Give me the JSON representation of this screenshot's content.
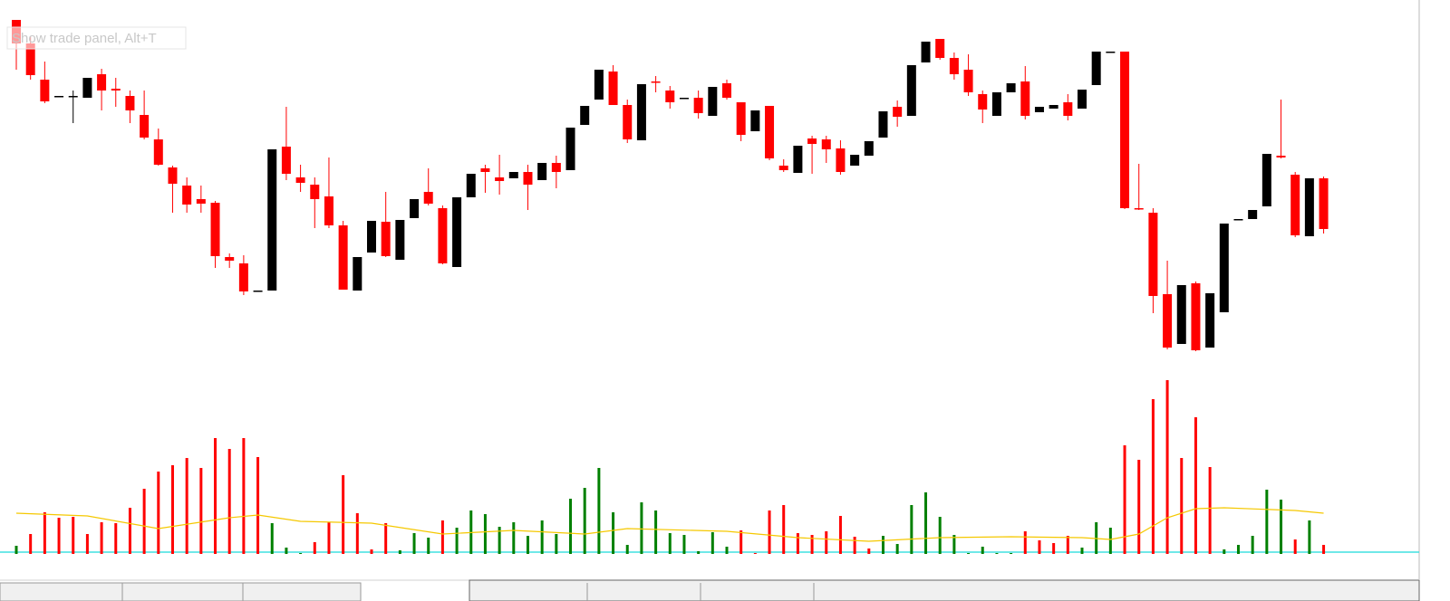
{
  "tooltip": "Show trade panel, Alt+T",
  "chart_data": {
    "type": "candlestick",
    "ylim": [
      0,
      400
    ],
    "up_color": "#000000",
    "down_color": "#ff0000",
    "open": [
      378,
      352,
      312,
      294,
      294,
      292,
      318,
      302,
      294,
      273,
      246,
      215,
      195,
      180,
      176,
      116,
      109,
      79,
      79,
      238,
      204,
      196,
      183,
      151,
      79,
      121,
      155,
      113,
      159,
      188,
      170,
      105,
      182,
      214,
      204,
      203,
      210,
      201,
      220,
      212,
      262,
      290,
      321,
      284,
      245,
      310,
      300,
      292,
      292,
      272,
      308,
      287,
      255,
      283,
      217,
      209,
      247,
      246,
      236,
      217,
      228,
      248,
      282,
      272,
      331,
      357,
      336,
      323,
      296,
      272,
      298,
      310,
      276,
      280,
      287,
      280,
      306,
      343,
      343,
      170,
      165,
      75,
      20,
      87,
      16,
      55,
      158,
      158,
      172,
      228,
      207,
      139,
      203
    ],
    "high": [
      378,
      360,
      332,
      294,
      300,
      314,
      324,
      314,
      300,
      300,
      258,
      217,
      204,
      195,
      178,
      120,
      118,
      79,
      235,
      282,
      218,
      204,
      226,
      156,
      116,
      156,
      188,
      157,
      180,
      214,
      173,
      182,
      208,
      218,
      229,
      210,
      218,
      220,
      228,
      259,
      283,
      323,
      328,
      290,
      307,
      316,
      305,
      292,
      300,
      304,
      312,
      287,
      278,
      283,
      224,
      239,
      250,
      250,
      245,
      229,
      244,
      277,
      289,
      328,
      354,
      357,
      342,
      340,
      300,
      298,
      308,
      327,
      282,
      284,
      296,
      301,
      343,
      343,
      343,
      219,
      170,
      112,
      85,
      89,
      76,
      153,
      158,
      168,
      230,
      290,
      210,
      203,
      205
    ],
    "low": [
      323,
      312,
      286,
      294,
      264,
      292,
      278,
      282,
      264,
      246,
      217,
      165,
      165,
      165,
      104,
      104,
      74,
      79,
      79,
      201,
      188,
      148,
      148,
      80,
      79,
      121,
      116,
      113,
      159,
      173,
      108,
      105,
      182,
      187,
      185,
      203,
      168,
      201,
      192,
      212,
      262,
      290,
      284,
      242,
      245,
      298,
      280,
      292,
      269,
      272,
      290,
      244,
      255,
      223,
      210,
      209,
      208,
      220,
      207,
      217,
      228,
      248,
      260,
      272,
      331,
      334,
      312,
      294,
      264,
      272,
      298,
      268,
      276,
      280,
      267,
      280,
      306,
      343,
      169,
      168,
      54,
      14,
      20,
      12,
      16,
      55,
      158,
      158,
      172,
      225,
      138,
      139,
      142
    ],
    "close": [
      352,
      317,
      288,
      294,
      294,
      314,
      300,
      300,
      278,
      248,
      218,
      197,
      174,
      175,
      117,
      112,
      78,
      79,
      235,
      208,
      198,
      180,
      151,
      80,
      116,
      156,
      117,
      157,
      180,
      175,
      109,
      182,
      208,
      210,
      200,
      210,
      196,
      220,
      210,
      259,
      283,
      323,
      284,
      246,
      307,
      309,
      287,
      292,
      275,
      304,
      292,
      251,
      278,
      225,
      212,
      239,
      241,
      235,
      210,
      229,
      244,
      277,
      271,
      328,
      354,
      336,
      318,
      298,
      279,
      298,
      308,
      272,
      282,
      284,
      272,
      301,
      343,
      343,
      170,
      169,
      73,
      16,
      85,
      13,
      76,
      153,
      158,
      168,
      230,
      226,
      140,
      203,
      147
    ],
    "volume_ylim": [
      0,
      200
    ],
    "volume": [
      9,
      22,
      46,
      40,
      41,
      22,
      35,
      34,
      51,
      72,
      91,
      98,
      106,
      95,
      128,
      116,
      128,
      107,
      34,
      7,
      1,
      13,
      35,
      87,
      45,
      5,
      34,
      4,
      23,
      18,
      37,
      29,
      48,
      44,
      30,
      35,
      20,
      37,
      22,
      61,
      73,
      95,
      46,
      10,
      57,
      48,
      23,
      21,
      3,
      24,
      8,
      26,
      1,
      48,
      54,
      23,
      21,
      25,
      42,
      19,
      6,
      20,
      11,
      54,
      68,
      41,
      21,
      1,
      8,
      1,
      1,
      25,
      15,
      12,
      20,
      7,
      35,
      29,
      120,
      104,
      171,
      192,
      106,
      151,
      96,
      5,
      10,
      20,
      71,
      60,
      16,
      37,
      10
    ],
    "volume_colors": [
      "#008000",
      "#ff0000",
      "#ff0000",
      "#ff0000",
      "#ff0000",
      "#ff0000",
      "#ff0000",
      "#ff0000",
      "#ff0000",
      "#ff0000",
      "#ff0000",
      "#ff0000",
      "#ff0000",
      "#ff0000",
      "#ff0000",
      "#ff0000",
      "#ff0000",
      "#ff0000",
      "#008000",
      "#008000",
      "#008000",
      "#ff0000",
      "#ff0000",
      "#ff0000",
      "#ff0000",
      "#ff0000",
      "#ff0000",
      "#008000",
      "#008000",
      "#008000",
      "#ff0000",
      "#008000",
      "#008000",
      "#008000",
      "#008000",
      "#008000",
      "#008000",
      "#008000",
      "#008000",
      "#008000",
      "#008000",
      "#008000",
      "#008000",
      "#008000",
      "#008000",
      "#008000",
      "#008000",
      "#008000",
      "#008000",
      "#008000",
      "#008000",
      "#ff0000",
      "#ff0000",
      "#ff0000",
      "#ff0000",
      "#ff0000",
      "#ff0000",
      "#ff0000",
      "#ff0000",
      "#ff0000",
      "#ff0000",
      "#008000",
      "#008000",
      "#008000",
      "#008000",
      "#008000",
      "#008000",
      "#008000",
      "#008000",
      "#008000",
      "#008000",
      "#ff0000",
      "#ff0000",
      "#ff0000",
      "#ff0000",
      "#008000",
      "#008000",
      "#008000",
      "#ff0000",
      "#ff0000",
      "#ff0000",
      "#ff0000",
      "#ff0000",
      "#ff0000",
      "#ff0000",
      "#008000",
      "#008000",
      "#008000",
      "#008000",
      "#008000",
      "#ff0000",
      "#008000",
      "#ff0000"
    ],
    "volume_ma": {
      "color": "#f5c800",
      "x": [
        0,
        5,
        10,
        15,
        17,
        20,
        25,
        30,
        35,
        40,
        43,
        50,
        55,
        60,
        65,
        70,
        75,
        77,
        79,
        81,
        83,
        85,
        90,
        92
      ],
      "values": [
        45,
        42,
        28,
        40,
        43,
        36,
        34,
        22,
        26,
        22,
        28,
        25,
        18,
        14,
        18,
        19,
        18,
        16,
        22,
        40,
        50,
        51,
        48,
        45
      ]
    }
  }
}
